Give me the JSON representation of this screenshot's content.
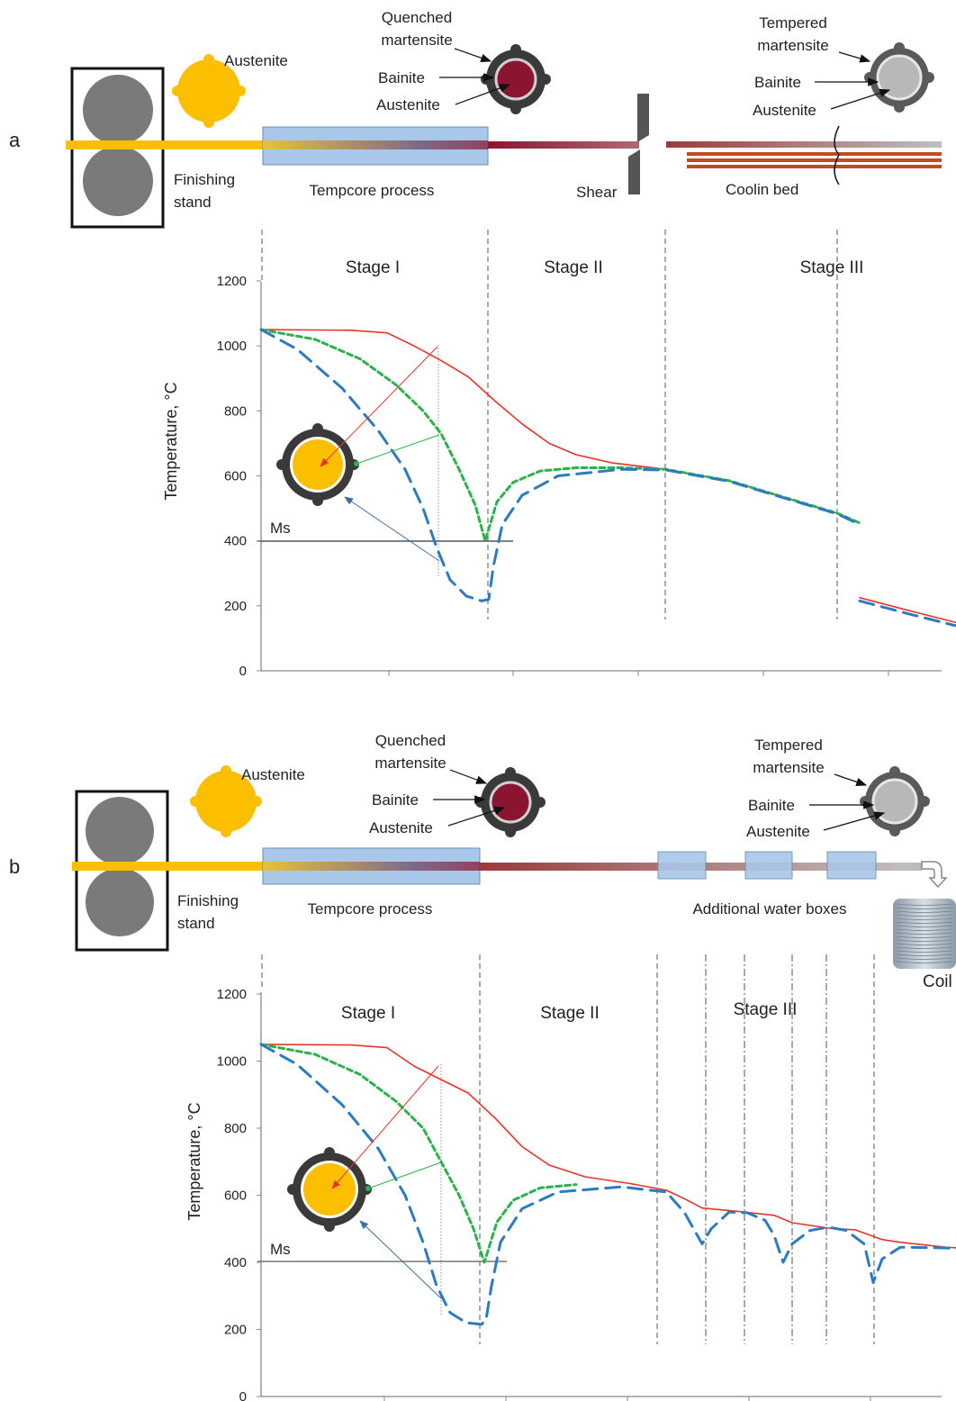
{
  "colors": {
    "red_surface": "#e8332a",
    "green_subsurface": "#2bb24c",
    "blue_core": "#2b7bc2",
    "austenite": "#fbbf00",
    "quenched_core": "#8b1530",
    "tempered_core": "#b8b8b8",
    "roll": "#7a7a7a",
    "water_box": "#a9c7e8",
    "cooling_bed_bars": "#c64a1f"
  },
  "panels": [
    {
      "letter": "a",
      "labels": {
        "austenite": "Austenite",
        "quenched_martensite": [
          "Quenched",
          "martensite"
        ],
        "bainite_mid": "Bainite",
        "austenite_mid": "Austenite",
        "tempered_martensite": [
          "Tempered",
          "martensite"
        ],
        "bainite_right": "Bainite",
        "austenite_right": "Austenite",
        "finishing_stand": [
          "Finishing",
          "stand"
        ],
        "tempcore": "Tempcore process",
        "shear": "Shear",
        "cooling_bed": "Coolin bed",
        "ms": "Ms",
        "ylabel": "Temperature, °C"
      },
      "stages": [
        "Stage I",
        "Stage II",
        "Stage III"
      ],
      "icons": [
        "austenite-icon",
        "quenched-bar-icon",
        "tempered-bar-icon",
        "section-icon",
        "shear-icon"
      ]
    },
    {
      "letter": "b",
      "labels": {
        "austenite": "Austenite",
        "quenched_martensite": [
          "Quenched",
          "martensite"
        ],
        "bainite_mid": "Bainite",
        "austenite_mid": "Austenite",
        "tempered_martensite": [
          "Tempered",
          "martensite"
        ],
        "bainite_right": "Bainite",
        "austenite_right": "Austenite",
        "finishing_stand": [
          "Finishing",
          "stand"
        ],
        "tempcore": "Tempcore process",
        "water_boxes": "Additional water boxes",
        "coil": "Coil",
        "ms": "Ms",
        "ylabel": "Temperature, °C"
      },
      "stages": [
        "Stage I",
        "Stage II",
        "Stage III"
      ],
      "icons": [
        "austenite-icon",
        "quenched-bar-icon",
        "tempered-bar-icon",
        "section-icon",
        "coil-icon",
        "turn-arrow-icon"
      ]
    }
  ],
  "chart_data": [
    {
      "type": "line",
      "ylim": [
        0,
        1200
      ],
      "yticks": [
        0,
        200,
        400,
        600,
        800,
        1000,
        1200
      ],
      "ms_level": 400,
      "series": [
        {
          "points": [
            [
              0,
              1050
            ],
            [
              100,
              1048
            ],
            [
              140,
              1040
            ],
            [
              170,
              1000
            ],
            [
              200,
              955
            ],
            [
              230,
              905
            ],
            [
              260,
              830
            ],
            [
              290,
              760
            ],
            [
              320,
              700
            ],
            [
              350,
              665
            ],
            [
              390,
              640
            ],
            [
              450,
              620
            ],
            [
              520,
              585
            ],
            [
              580,
              535
            ],
            [
              640,
              485
            ],
            [
              665,
              455
            ]
          ]
        },
        {
          "points": [
            [
              0,
              1050
            ],
            [
              60,
              1020
            ],
            [
              110,
              960
            ],
            [
              150,
              880
            ],
            [
              180,
              800
            ],
            [
              200,
              730
            ],
            [
              220,
              620
            ],
            [
              238,
              510
            ],
            [
              249,
              400
            ],
            [
              262,
              520
            ],
            [
              280,
              580
            ],
            [
              310,
              615
            ],
            [
              350,
              625
            ],
            [
              400,
              625
            ],
            [
              450,
              620
            ],
            [
              520,
              585
            ],
            [
              580,
              535
            ],
            [
              640,
              485
            ],
            [
              665,
              455
            ]
          ]
        },
        {
          "points": [
            [
              0,
              1050
            ],
            [
              40,
              990
            ],
            [
              90,
              870
            ],
            [
              130,
              740
            ],
            [
              160,
              620
            ],
            [
              180,
              500
            ],
            [
              195,
              380
            ],
            [
              210,
              280
            ],
            [
              228,
              230
            ],
            [
              245,
              215
            ],
            [
              253,
              220
            ],
            [
              258,
              320
            ],
            [
              268,
              450
            ],
            [
              290,
              540
            ],
            [
              330,
              600
            ],
            [
              400,
              620
            ],
            [
              450,
              618
            ],
            [
              520,
              583
            ],
            [
              580,
              533
            ],
            [
              640,
              483
            ],
            [
              665,
              450
            ]
          ]
        },
        {
          "points": [
            [
              665,
              225
            ],
            [
              720,
              185
            ],
            [
              770,
              150
            ],
            [
              820,
              120
            ],
            [
              850,
              110
            ]
          ]
        },
        {
          "points": [
            [
              665,
              215
            ],
            [
              720,
              175
            ],
            [
              770,
              140
            ],
            [
              820,
              113
            ],
            [
              850,
              105
            ]
          ]
        }
      ]
    },
    {
      "type": "line",
      "ylim": [
        0,
        1200
      ],
      "yticks": [
        0,
        200,
        400,
        600,
        800,
        1000,
        1200
      ],
      "ms_level": 400,
      "series": [
        {
          "points": [
            [
              0,
              1050
            ],
            [
              100,
              1048
            ],
            [
              140,
              1040
            ],
            [
              170,
              985
            ],
            [
              200,
              945
            ],
            [
              230,
              905
            ],
            [
              260,
              830
            ],
            [
              290,
              745
            ],
            [
              320,
              690
            ],
            [
              360,
              655
            ],
            [
              410,
              635
            ],
            [
              450,
              615
            ],
            [
              470,
              590
            ],
            [
              490,
              562
            ],
            [
              530,
              552
            ],
            [
              570,
              540
            ],
            [
              590,
              518
            ],
            [
              630,
              502
            ],
            [
              660,
              497
            ],
            [
              690,
              468
            ],
            [
              710,
              460
            ],
            [
              760,
              445
            ],
            [
              800,
              440
            ]
          ]
        },
        {
          "points": [
            [
              0,
              1050
            ],
            [
              60,
              1020
            ],
            [
              110,
              960
            ],
            [
              150,
              880
            ],
            [
              180,
              800
            ],
            [
              200,
              700
            ],
            [
              220,
              600
            ],
            [
              236,
              500
            ],
            [
              248,
              400
            ],
            [
              262,
              520
            ],
            [
              280,
              585
            ],
            [
              310,
              622
            ],
            [
              350,
              632
            ]
          ]
        },
        {
          "points": [
            [
              0,
              1050
            ],
            [
              40,
              990
            ],
            [
              90,
              870
            ],
            [
              130,
              740
            ],
            [
              160,
              600
            ],
            [
              180,
              460
            ],
            [
              195,
              330
            ],
            [
              210,
              250
            ],
            [
              228,
              220
            ],
            [
              245,
              215
            ],
            [
              250,
              230
            ],
            [
              256,
              330
            ],
            [
              266,
              460
            ],
            [
              290,
              560
            ],
            [
              330,
              610
            ],
            [
              400,
              625
            ],
            [
              450,
              610
            ],
            [
              470,
              550
            ],
            [
              490,
              455
            ],
            [
              500,
              500
            ],
            [
              520,
              550
            ],
            [
              540,
              548
            ],
            [
              560,
              525
            ],
            [
              570,
              480
            ],
            [
              580,
              400
            ],
            [
              590,
              455
            ],
            [
              610,
              495
            ],
            [
              630,
              505
            ],
            [
              650,
              495
            ],
            [
              670,
              455
            ],
            [
              680,
              340
            ],
            [
              690,
              410
            ],
            [
              710,
              445
            ],
            [
              760,
              443
            ],
            [
              800,
              435
            ]
          ]
        }
      ]
    }
  ]
}
